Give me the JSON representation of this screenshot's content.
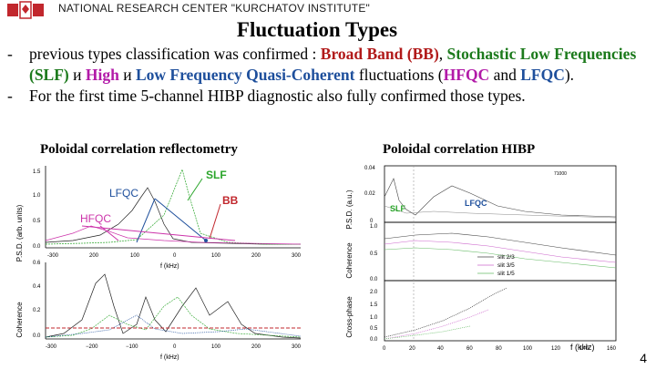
{
  "header": {
    "org": "NATIONAL RESEARCH CENTER \"KURCHATOV INSTITUTE\""
  },
  "title": "Fluctuation Types",
  "bullets": {
    "b1": {
      "dash": "-",
      "p1": "previous types classification was confirmed : ",
      "bb": "Broad Band (BB)",
      "p2": ", ",
      "slf": "Stochastic Low Frequencies (SLF)",
      "p3": " и ",
      "high": "High",
      "p4": " и ",
      "lfqc": "Low Frequency Quasi-Coherent",
      "p5": " fluctuations (",
      "hfqc2": "HFQC",
      "p6": " and ",
      "lfqc2": "LFQC",
      "p7": ")."
    },
    "b2": {
      "dash": "-",
      "text": "For the first time 5-channel HIBP diagnostic also fully confirmed those types."
    }
  },
  "captions": {
    "left": "Poloidal correlation reflectometry",
    "right": "Poloidal correlation HIBP"
  },
  "left_plot": {
    "labels": {
      "slf": "SLF",
      "lfqc": "LFQC",
      "bb": "BB",
      "hfqc": "HFQC"
    },
    "top_yticks": [
      "1.5",
      "1.0",
      "0.5",
      "0.0"
    ],
    "top_xticks": [
      "-300",
      "200",
      "100",
      "0",
      "100",
      "200",
      "300"
    ],
    "bottom_yticks": [
      "0.6",
      "0.4",
      "0.2",
      "0.0"
    ],
    "bottom_xticks": [
      "-300",
      "−200",
      "−100",
      "0",
      "100",
      "200",
      "300"
    ],
    "xlabel": "f (kHz)",
    "top_ylabel": "P.S.D. (arb. units)",
    "bottom_ylabel": "Coherence"
  },
  "right_plot": {
    "labels": {
      "slf": "SLF",
      "lfqc": "LFQC",
      "shot": "71000"
    },
    "top_yticks": [
      "0.04",
      "0.02",
      "0"
    ],
    "mid_yticks": [
      "1.0",
      "0.5",
      "0.0"
    ],
    "bottom_yticks": [
      "2.0",
      "1.5",
      "1.0",
      "0.5",
      "0.0"
    ],
    "xticks": [
      "0",
      "20",
      "40",
      "60",
      "80",
      "100",
      "120",
      "140",
      "160"
    ],
    "xlabel": "f (kHz)",
    "legend": [
      "slit 2/3",
      "slit 3/5",
      "slit 1/5"
    ],
    "top_ylabel": "P.S.D. (a.u.)",
    "mid_ylabel": "Coherence",
    "bottom_ylabel": "Cross-phase"
  },
  "page_number": "4"
}
